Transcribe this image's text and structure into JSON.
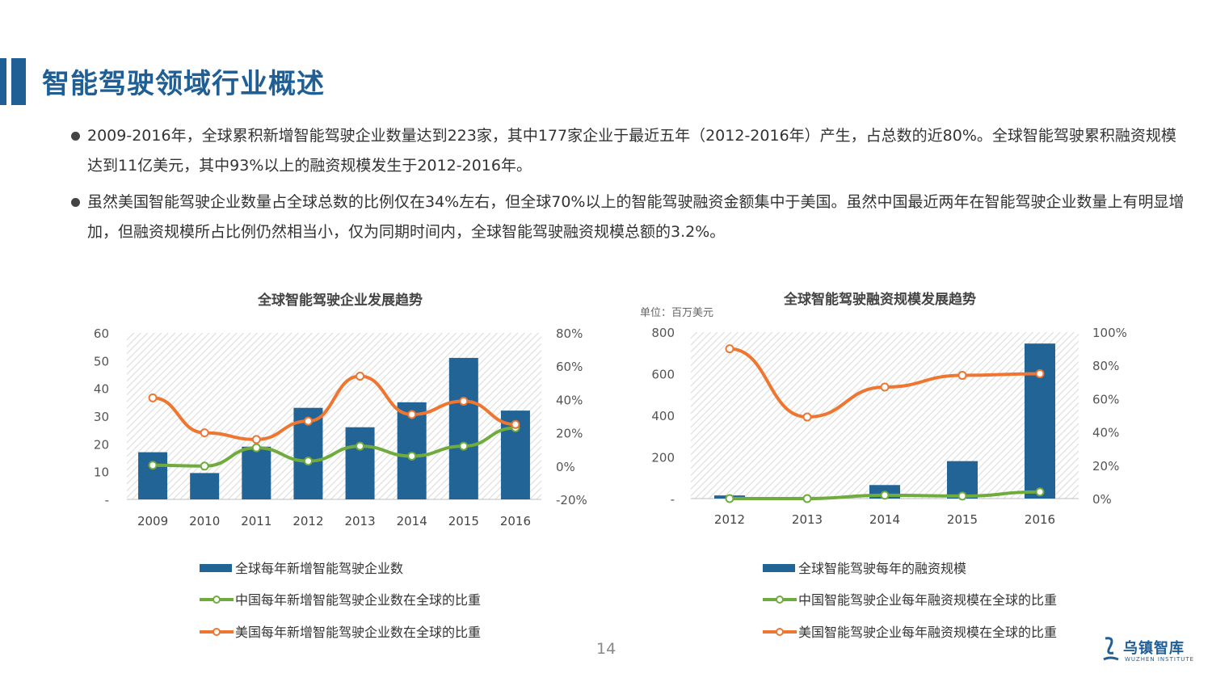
{
  "page": {
    "title": "智能驾驶领域行业概述",
    "page_number": "14",
    "logo_name": "乌镇智库",
    "logo_sub": "WUZHEN INSTITUTE"
  },
  "bullets": [
    "2009-2016年，全球累积新增智能驾驶企业数量达到223家，其中177家企业于最近五年（2012-2016年）产生，占总数的近80%。全球智能驾驶累积融资规模达到11亿美元，其中93%以上的融资规模发生于2012-2016年。",
    "虽然美国智能驾驶企业数量占全球总数的比例仅在34%左右，但全球70%以上的智能驾驶融资金额集中于美国。虽然中国最近两年在智能驾驶企业数量上有明显增加，但融资规模所占比例仍然相当小，仅为同期时间内，全球智能驾驶融资规模总额的3.2%。"
  ],
  "colors": {
    "bar": "#236496",
    "green": "#6fab3d",
    "orange": "#ee7630",
    "title": "#1f5f96"
  },
  "chart_data": [
    {
      "type": "bar",
      "title": "全球智能驾驶企业发展趋势",
      "categories": [
        "2009",
        "2010",
        "2011",
        "2012",
        "2013",
        "2014",
        "2015",
        "2016"
      ],
      "ylim": [
        0,
        60
      ],
      "y_ticks": [
        "-",
        "10",
        "20",
        "30",
        "40",
        "50",
        "60"
      ],
      "y2lim": [
        -20,
        80
      ],
      "y2_ticks": [
        "-20%",
        "0%",
        "20%",
        "40%",
        "60%",
        "80%"
      ],
      "series": [
        {
          "name": "全球每年新增智能驾驶企业数",
          "type": "bar",
          "axis": "left",
          "values": [
            17,
            9.5,
            19,
            33,
            26,
            35,
            51,
            32
          ]
        },
        {
          "name": "中国每年新增智能驾驶企业数在全球的比重",
          "type": "line",
          "axis": "right",
          "values": [
            0.5,
            0,
            11,
            3,
            12,
            6,
            12,
            23
          ]
        },
        {
          "name": "美国每年新增智能驾驶企业数在全球的比重",
          "type": "line",
          "axis": "right",
          "values": [
            41,
            20,
            16,
            27,
            54,
            31,
            39,
            25
          ]
        }
      ]
    },
    {
      "type": "bar",
      "title": "全球智能驾驶融资规模发展趋势",
      "unit_label": "单位：百万美元",
      "categories": [
        "2012",
        "2013",
        "2014",
        "2015",
        "2016"
      ],
      "ylim": [
        0,
        800
      ],
      "y_ticks": [
        "-",
        "200",
        "400",
        "600",
        "800"
      ],
      "y2lim": [
        0,
        100
      ],
      "y2_ticks": [
        "0%",
        "20%",
        "40%",
        "60%",
        "80%",
        "100%"
      ],
      "series": [
        {
          "name": "全球智能驾驶每年的融资规模",
          "type": "bar",
          "axis": "left",
          "values": [
            15,
            8,
            65,
            180,
            745
          ]
        },
        {
          "name": "中国智能驾驶企业每年融资规模在全球的比重",
          "type": "line",
          "axis": "right",
          "values": [
            0,
            0,
            2,
            1.5,
            4
          ]
        },
        {
          "name": "美国智能驾驶企业每年融资规模在全球的比重",
          "type": "line",
          "axis": "right",
          "values": [
            90,
            49,
            67,
            74,
            75
          ]
        }
      ]
    }
  ]
}
